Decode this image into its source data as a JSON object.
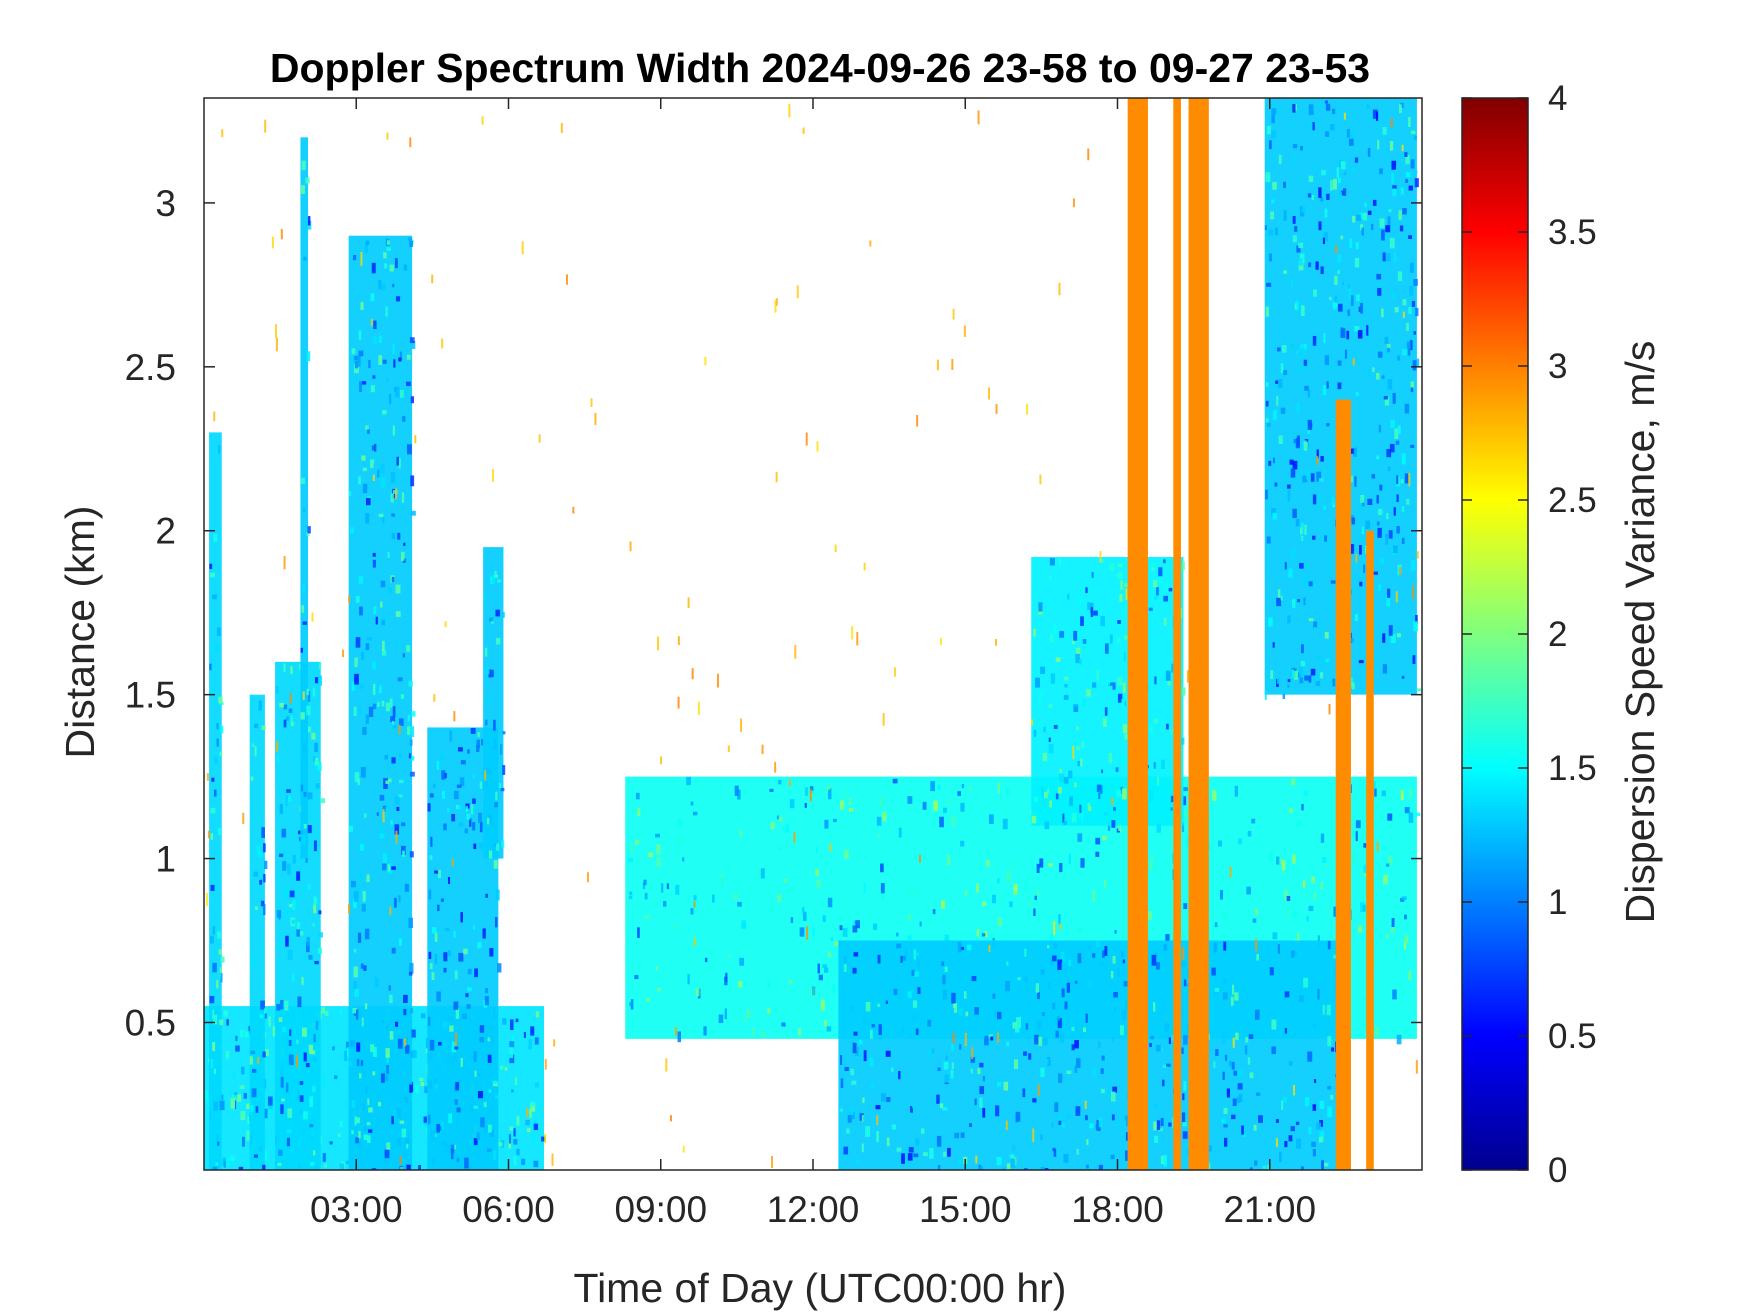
{
  "chart_data": {
    "type": "heatmap",
    "title": "Doppler Spectrum Width 2024-09-26 23-58 to 09-27 23-53",
    "xlabel": "Time of Day (UTC00:00 hr)",
    "ylabel": "Distance (km)",
    "xlim": [
      0,
      24
    ],
    "ylim": [
      0.05,
      3.32
    ],
    "x_ticks": [
      3,
      6,
      9,
      12,
      15,
      18,
      21
    ],
    "x_tick_labels": [
      "03:00",
      "06:00",
      "09:00",
      "12:00",
      "15:00",
      "18:00",
      "21:00"
    ],
    "y_ticks": [
      0.5,
      1,
      1.5,
      2,
      2.5,
      3
    ],
    "y_tick_labels": [
      "0.5",
      "1",
      "1.5",
      "2",
      "2.5",
      "3"
    ],
    "colorbar": {
      "label": "Dispersion Speed Variance, m/s",
      "colormap": "jet",
      "range": [
        0,
        4
      ],
      "ticks": [
        0,
        0.5,
        1,
        1.5,
        2,
        2.5,
        3,
        3.5,
        4
      ],
      "tick_labels": [
        "0",
        "0.5",
        "1",
        "1.5",
        "2",
        "2.5",
        "3",
        "3.5",
        "4"
      ]
    },
    "background_color": "#ffffff",
    "regions": [
      {
        "name": "early-boundary-layer",
        "time": [
          0,
          6.7
        ],
        "height": [
          0.05,
          0.55
        ],
        "value": 1.4
      },
      {
        "name": "plume-00h",
        "time": [
          0.1,
          0.35
        ],
        "height": [
          0.05,
          2.3
        ],
        "value": 1.35
      },
      {
        "name": "plume-01h",
        "time": [
          0.9,
          1.2
        ],
        "height": [
          0.05,
          1.5
        ],
        "value": 1.35
      },
      {
        "name": "plume-01h40",
        "time": [
          1.4,
          2.3
        ],
        "height": [
          0.05,
          1.6
        ],
        "value": 1.35
      },
      {
        "name": "plume-02h",
        "time": [
          1.9,
          2.05
        ],
        "height": [
          1.0,
          3.2
        ],
        "value": 1.3
      },
      {
        "name": "plume-03h",
        "time": [
          2.85,
          4.1
        ],
        "height": [
          0.05,
          2.9
        ],
        "value": 1.3
      },
      {
        "name": "plume-04h30",
        "time": [
          4.4,
          5.8
        ],
        "height": [
          0.05,
          1.4
        ],
        "value": 1.3
      },
      {
        "name": "plume-05h40",
        "time": [
          5.5,
          5.9
        ],
        "height": [
          1.0,
          1.95
        ],
        "value": 1.3
      },
      {
        "name": "residual-layer",
        "time": [
          8.3,
          23.9
        ],
        "height": [
          0.45,
          1.25
        ],
        "value": 1.55
      },
      {
        "name": "convective-mixed-layer",
        "time": [
          12.5,
          22.5
        ],
        "height": [
          0.05,
          0.75
        ],
        "value": 1.3
      },
      {
        "name": "cloud-layer-17h",
        "time": [
          16.3,
          19.3
        ],
        "height": [
          1.1,
          1.92
        ],
        "value": 1.45
      },
      {
        "name": "cloud-layer-21h",
        "time": [
          20.9,
          23.9
        ],
        "height": [
          1.5,
          3.32
        ],
        "value": 1.3
      }
    ],
    "rain_columns": [
      {
        "time": [
          18.2,
          18.6
        ],
        "height": [
          0.05,
          3.32
        ],
        "value": 2.95
      },
      {
        "time": [
          19.1,
          19.25
        ],
        "height": [
          0.05,
          3.32
        ],
        "value": 2.95
      },
      {
        "time": [
          19.4,
          19.8
        ],
        "height": [
          0.05,
          3.32
        ],
        "value": 2.95
      },
      {
        "time": [
          22.3,
          22.6
        ],
        "height": [
          0.05,
          2.4
        ],
        "value": 2.95
      },
      {
        "time": [
          22.9,
          23.05
        ],
        "height": [
          0.05,
          2.0
        ],
        "value": 2.95
      }
    ]
  }
}
